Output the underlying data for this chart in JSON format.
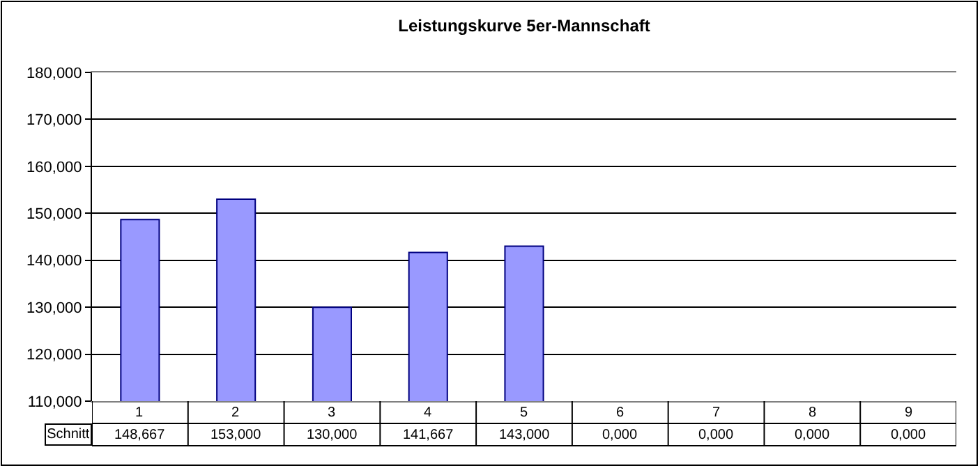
{
  "chart_data": {
    "type": "bar",
    "title": "Leistungskurve 5er-Mannschaft",
    "categories": [
      "1",
      "2",
      "3",
      "4",
      "5",
      "6",
      "7",
      "8",
      "9"
    ],
    "series": [
      {
        "name": "Schnitt",
        "color": "#9999ff",
        "values": [
          148.667,
          153.0,
          130.0,
          141.667,
          143.0,
          null,
          null,
          null,
          null
        ],
        "value_labels": [
          "148,667",
          "153,000",
          "130,000",
          "141,667",
          "143,000",
          "0,000",
          "0,000",
          "0,000",
          "0,000"
        ]
      }
    ],
    "ylim": [
      110,
      180
    ],
    "yticks": [
      {
        "value": 110,
        "label": "110,000"
      },
      {
        "value": 120,
        "label": "120,000"
      },
      {
        "value": 130,
        "label": "130,000"
      },
      {
        "value": 140,
        "label": "140,000"
      },
      {
        "value": 150,
        "label": "150,000"
      },
      {
        "value": 160,
        "label": "160,000"
      },
      {
        "value": 170,
        "label": "170,000"
      },
      {
        "value": 180,
        "label": "180,000"
      }
    ],
    "grid": "y",
    "legend": false
  }
}
